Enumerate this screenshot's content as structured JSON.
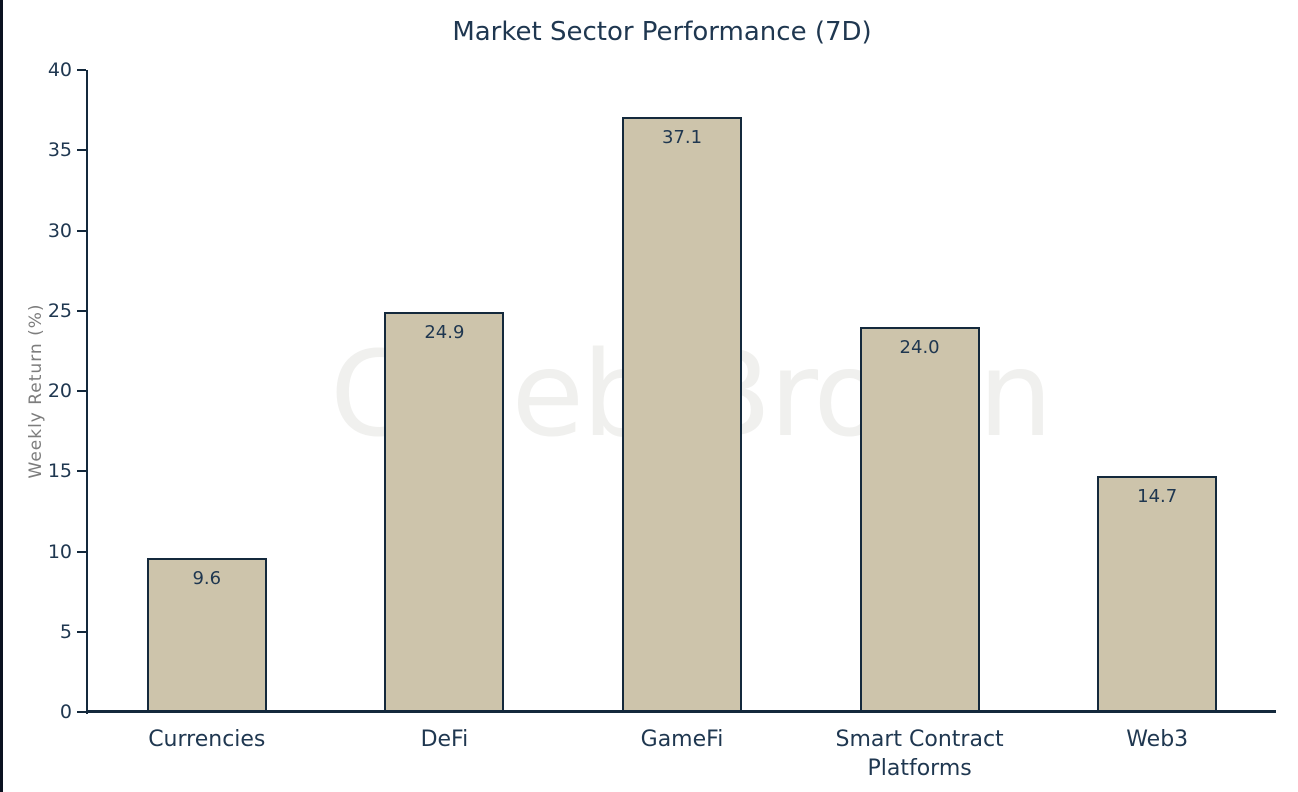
{
  "title": "Market Sector Performance (7D)",
  "watermark": "Caleb Brown",
  "chart_data": {
    "type": "bar",
    "title": "Market Sector Performance (7D)",
    "categories": [
      "Currencies",
      "DeFi",
      "GameFi",
      "Smart Contract Platforms",
      "Web3"
    ],
    "values": [
      9.6,
      24.9,
      37.1,
      24.0,
      14.7
    ],
    "value_labels": [
      "9.6",
      "24.9",
      "37.1",
      "24.0",
      "14.7"
    ],
    "xlabel": "",
    "ylabel": "Weekly Return (%)",
    "ylim": [
      0,
      40
    ],
    "yticks": [
      0,
      5,
      10,
      15,
      20,
      25,
      30,
      35,
      40
    ],
    "grid": false,
    "legend": false,
    "colors": {
      "bar_fill": "#cdc4ab",
      "bar_border": "#14293c",
      "axis": "#14293c",
      "text": "#1f3750",
      "ylabel_text": "#7d7d7d",
      "watermark": "#f0f0ee",
      "figure_edge": "#0b1220",
      "background": "#ffffff"
    }
  }
}
